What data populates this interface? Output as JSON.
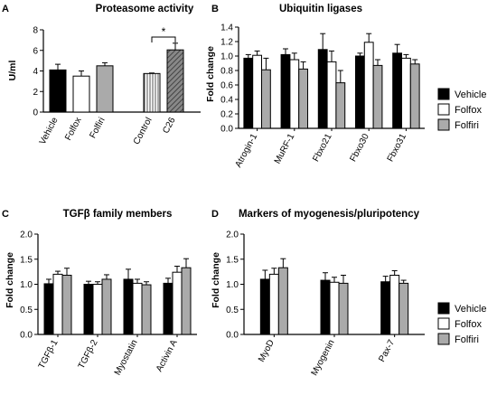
{
  "chart_data": [
    {
      "type": "bar",
      "panel": "A",
      "title": "Proteasome activity",
      "ylabel": "U/ml",
      "ylim": [
        0,
        8
      ],
      "yticks": [
        0,
        2,
        4,
        6,
        8
      ],
      "categories": [
        "Vehicle",
        "Folfox",
        "Folfiri",
        "Control",
        "C26"
      ],
      "values": [
        4.1,
        3.5,
        4.5,
        3.75,
        6.05
      ],
      "errors": [
        0.55,
        0.5,
        0.3,
        0.05,
        0.65
      ],
      "fills": [
        "#000000",
        "#ffffff",
        "#aaaaaa",
        "vstripe",
        "dstripe"
      ],
      "significance": "*"
    },
    {
      "type": "bar",
      "panel": "B",
      "title": "Ubiquitin ligases",
      "ylabel": "Fold change",
      "ylim": [
        0,
        1.4
      ],
      "yticks": [
        0,
        0.2,
        0.4,
        0.6,
        0.8,
        1.0,
        1.2,
        1.4
      ],
      "categories": [
        "Atrogin-1",
        "MuRF-1",
        "Fbxo21",
        "Fbxo30",
        "Fbxo31"
      ],
      "series": [
        {
          "name": "Vehicle",
          "values": [
            0.97,
            1.02,
            1.09,
            1.0,
            1.04
          ],
          "errors": [
            0.05,
            0.08,
            0.22,
            0.04,
            0.12
          ]
        },
        {
          "name": "Folfox",
          "values": [
            1.01,
            0.95,
            0.92,
            1.19,
            0.97
          ],
          "errors": [
            0.06,
            0.09,
            0.15,
            0.12,
            0.05
          ]
        },
        {
          "name": "Folfiri",
          "values": [
            0.81,
            0.82,
            0.63,
            0.87,
            0.89
          ],
          "errors": [
            0.16,
            0.1,
            0.17,
            0.08,
            0.06
          ]
        }
      ]
    },
    {
      "type": "bar",
      "panel": "C",
      "title": "TGFβ family members",
      "ylabel": "Fold change",
      "ylim": [
        0,
        2.0
      ],
      "yticks": [
        0,
        0.5,
        1.0,
        1.5,
        2.0
      ],
      "categories": [
        "TGFβ-1",
        "TGFβ-2",
        "Myostatin",
        "Activin A"
      ],
      "series": [
        {
          "name": "Vehicle",
          "values": [
            1.01,
            1.0,
            1.1,
            1.02
          ],
          "errors": [
            0.09,
            0.06,
            0.2,
            0.1
          ]
        },
        {
          "name": "Folfox",
          "values": [
            1.2,
            1.0,
            1.02,
            1.24
          ],
          "errors": [
            0.06,
            0.05,
            0.08,
            0.12
          ]
        },
        {
          "name": "Folfiri",
          "values": [
            1.18,
            1.1,
            0.99,
            1.33
          ],
          "errors": [
            0.14,
            0.09,
            0.06,
            0.18
          ]
        }
      ]
    },
    {
      "type": "bar",
      "panel": "D",
      "title": "Markers of myogenesis/pluripotency",
      "ylabel": "Fold change",
      "ylim": [
        0,
        2.0
      ],
      "yticks": [
        0,
        0.5,
        1.0,
        1.5,
        2.0
      ],
      "categories": [
        "MyoD",
        "Myogenin",
        "Pax-7"
      ],
      "series": [
        {
          "name": "Vehicle",
          "values": [
            1.1,
            1.08,
            1.05
          ],
          "errors": [
            0.18,
            0.15,
            0.11
          ]
        },
        {
          "name": "Folfox",
          "values": [
            1.2,
            1.04,
            1.18
          ],
          "errors": [
            0.12,
            0.1,
            0.09
          ]
        },
        {
          "name": "Folfiri",
          "values": [
            1.33,
            1.02,
            1.02
          ],
          "errors": [
            0.18,
            0.16,
            0.06
          ]
        }
      ]
    }
  ],
  "legend": {
    "entries": [
      {
        "name": "Vehicle",
        "color": "#000000"
      },
      {
        "name": "Folfox",
        "color": "#ffffff"
      },
      {
        "name": "Folfiri",
        "color": "#aaaaaa"
      }
    ]
  }
}
